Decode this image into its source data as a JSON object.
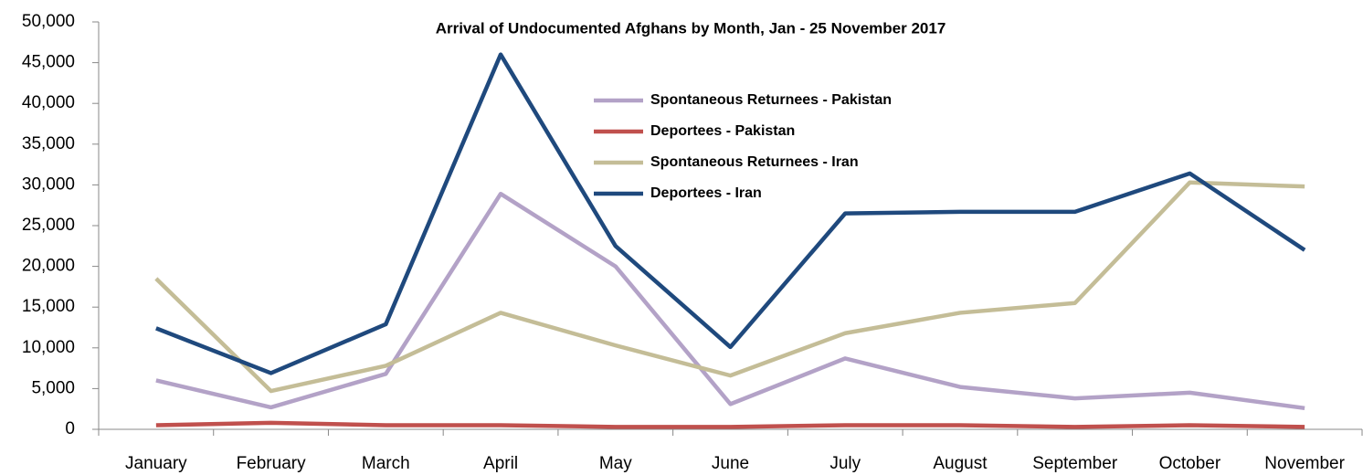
{
  "chart_data": {
    "type": "line",
    "title": "Arrival of Undocumented  Afghans by Month,  Jan - 25 November  2017",
    "categories": [
      "January",
      "February",
      "March",
      "April",
      "May",
      "June",
      "July",
      "August",
      "September",
      "October",
      "November"
    ],
    "series": [
      {
        "name": "Spontaneous Returnees - Pakistan",
        "color": "#b3a2c7",
        "values": [
          6000,
          2700,
          6800,
          28900,
          20000,
          3100,
          8700,
          5200,
          3800,
          4500,
          2600
        ]
      },
      {
        "name": "Deportees - Pakistan",
        "color": "#c0504d",
        "values": [
          500,
          800,
          500,
          500,
          300,
          300,
          500,
          500,
          300,
          500,
          300
        ]
      },
      {
        "name": "Spontaneous Returnees - Iran",
        "color": "#c4bd97",
        "values": [
          18500,
          4700,
          7800,
          14300,
          10300,
          6600,
          11800,
          14300,
          15500,
          30300,
          29800
        ]
      },
      {
        "name": "Deportees - Iran",
        "color": "#1f497d",
        "values": [
          12400,
          6900,
          12900,
          46000,
          22500,
          10100,
          26500,
          26700,
          26700,
          31400,
          22000
        ]
      }
    ],
    "ylim": [
      0,
      50000
    ],
    "yticks": [
      0,
      {
        "value": 5000,
        "label": "5,000"
      },
      {
        "value": 10000,
        "label": "10,000"
      },
      {
        "value": 15000,
        "label": "15,000"
      },
      {
        "value": 20000,
        "label": "20,000"
      },
      {
        "value": 25000,
        "label": "25,000"
      },
      {
        "value": 30000,
        "label": "30,000"
      },
      {
        "value": 35000,
        "label": "35,000"
      },
      {
        "value": 40000,
        "label": "40,000"
      },
      {
        "value": 45000,
        "label": "45,000"
      },
      {
        "value": 50000,
        "label": "50,000"
      }
    ],
    "grid": false
  }
}
